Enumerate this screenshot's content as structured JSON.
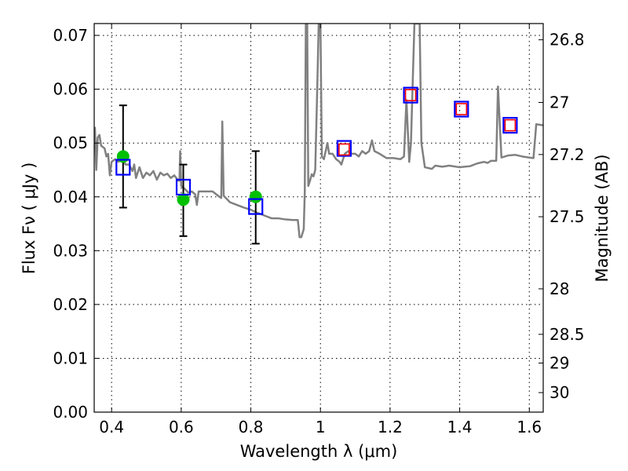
{
  "chart_data": {
    "type": "line",
    "title": "",
    "xlabel": "Wavelength  λ (μm)",
    "ylabel": "Flux  Fν  ( μJy )",
    "ylabel_right": "Magnitude (AB)",
    "xlim": [
      0.35,
      1.64
    ],
    "ylim": [
      0.0,
      0.0722
    ],
    "grid": true,
    "x_ticks": [
      "0.4",
      "0.6",
      "0.8",
      "1",
      "1.2",
      "1.4",
      "1.6"
    ],
    "x_tick_values": [
      0.4,
      0.6,
      0.8,
      1.0,
      1.2,
      1.4,
      1.6
    ],
    "y_ticks": [
      "0.00",
      "0.01",
      "0.02",
      "0.03",
      "0.04",
      "0.05",
      "0.06",
      "0.07"
    ],
    "y_tick_values": [
      0,
      0.01,
      0.02,
      0.03,
      0.04,
      0.05,
      0.06,
      0.07
    ],
    "right_ticks": [
      "26.8",
      "27",
      "27.2",
      "27.5",
      "28",
      "28.5",
      "29",
      "30"
    ],
    "right_tick_values": [
      26.8,
      27,
      27.2,
      27.5,
      28,
      28.5,
      29,
      30
    ],
    "mag_zeropoint": 23.9,
    "colors": {
      "spectrum": "#808080",
      "observed": "#00c000",
      "errorbar": "#000000",
      "model": "#0000ff",
      "model2": "#ff0000"
    },
    "series": [
      {
        "name": "spectrum",
        "type": "line",
        "points": [
          [
            0.352,
            0.053
          ],
          [
            0.356,
            0.045
          ],
          [
            0.36,
            0.051
          ],
          [
            0.365,
            0.0515
          ],
          [
            0.37,
            0.0495
          ],
          [
            0.38,
            0.049
          ],
          [
            0.385,
            0.0475
          ],
          [
            0.39,
            0.048
          ],
          [
            0.395,
            0.044
          ],
          [
            0.4,
            0.0465
          ],
          [
            0.41,
            0.047
          ],
          [
            0.42,
            0.0465
          ],
          [
            0.43,
            0.0475
          ],
          [
            0.44,
            0.046
          ],
          [
            0.45,
            0.046
          ],
          [
            0.46,
            0.0448
          ],
          [
            0.465,
            0.046
          ],
          [
            0.47,
            0.0435
          ],
          [
            0.48,
            0.0455
          ],
          [
            0.49,
            0.0435
          ],
          [
            0.5,
            0.0445
          ],
          [
            0.51,
            0.044
          ],
          [
            0.52,
            0.0448
          ],
          [
            0.53,
            0.0432
          ],
          [
            0.54,
            0.0445
          ],
          [
            0.55,
            0.044
          ],
          [
            0.56,
            0.0443
          ],
          [
            0.57,
            0.0435
          ],
          [
            0.58,
            0.044
          ],
          [
            0.592,
            0.043
          ],
          [
            0.595,
            0.043
          ],
          [
            0.597,
            0.0485
          ],
          [
            0.6,
            0.042
          ],
          [
            0.61,
            0.0415
          ],
          [
            0.62,
            0.0408
          ],
          [
            0.63,
            0.041
          ],
          [
            0.64,
            0.0405
          ],
          [
            0.645,
            0.0385
          ],
          [
            0.65,
            0.041
          ],
          [
            0.67,
            0.041
          ],
          [
            0.69,
            0.041
          ],
          [
            0.71,
            0.04
          ],
          [
            0.715,
            0.0398
          ],
          [
            0.718,
            0.054
          ],
          [
            0.722,
            0.0402
          ],
          [
            0.74,
            0.039
          ],
          [
            0.76,
            0.0385
          ],
          [
            0.78,
            0.038
          ],
          [
            0.8,
            0.0376
          ],
          [
            0.82,
            0.037
          ],
          [
            0.84,
            0.0365
          ],
          [
            0.86,
            0.036
          ],
          [
            0.88,
            0.036
          ],
          [
            0.9,
            0.0358
          ],
          [
            0.92,
            0.0357
          ],
          [
            0.935,
            0.0357
          ],
          [
            0.94,
            0.0325
          ],
          [
            0.945,
            0.0325
          ],
          [
            0.952,
            0.034
          ],
          [
            0.955,
            0.041
          ],
          [
            0.958,
            0.0722
          ],
          [
            0.962,
            0.0722
          ],
          [
            0.965,
            0.042
          ],
          [
            0.97,
            0.043
          ],
          [
            0.975,
            0.0442
          ],
          [
            0.98,
            0.0438
          ],
          [
            0.985,
            0.045
          ],
          [
            0.99,
            0.058
          ],
          [
            0.995,
            0.0722
          ],
          [
            1.0,
            0.0722
          ],
          [
            1.004,
            0.0475
          ],
          [
            1.01,
            0.047
          ],
          [
            1.02,
            0.05
          ],
          [
            1.025,
            0.048
          ],
          [
            1.035,
            0.048
          ],
          [
            1.045,
            0.047
          ],
          [
            1.055,
            0.0465
          ],
          [
            1.06,
            0.046
          ],
          [
            1.07,
            0.048
          ],
          [
            1.08,
            0.0485
          ],
          [
            1.09,
            0.048
          ],
          [
            1.1,
            0.048
          ],
          [
            1.11,
            0.0475
          ],
          [
            1.12,
            0.0485
          ],
          [
            1.13,
            0.048
          ],
          [
            1.14,
            0.0485
          ],
          [
            1.148,
            0.0505
          ],
          [
            1.155,
            0.0485
          ],
          [
            1.17,
            0.048
          ],
          [
            1.19,
            0.0472
          ],
          [
            1.21,
            0.0472
          ],
          [
            1.23,
            0.047
          ],
          [
            1.24,
            0.0475
          ],
          [
            1.247,
            0.058
          ],
          [
            1.255,
            0.0465
          ],
          [
            1.26,
            0.05
          ],
          [
            1.27,
            0.0722
          ],
          [
            1.285,
            0.0722
          ],
          [
            1.29,
            0.05
          ],
          [
            1.3,
            0.0455
          ],
          [
            1.32,
            0.0452
          ],
          [
            1.33,
            0.0458
          ],
          [
            1.35,
            0.0456
          ],
          [
            1.37,
            0.0458
          ],
          [
            1.4,
            0.0455
          ],
          [
            1.43,
            0.0457
          ],
          [
            1.45,
            0.0462
          ],
          [
            1.47,
            0.0465
          ],
          [
            1.48,
            0.0463
          ],
          [
            1.49,
            0.0467
          ],
          [
            1.505,
            0.0467
          ],
          [
            1.51,
            0.0605
          ],
          [
            1.52,
            0.0473
          ],
          [
            1.54,
            0.0477
          ],
          [
            1.56,
            0.0478
          ],
          [
            1.58,
            0.0475
          ],
          [
            1.6,
            0.0473
          ],
          [
            1.612,
            0.0472
          ],
          [
            1.62,
            0.0535
          ],
          [
            1.64,
            0.0533
          ]
        ]
      },
      {
        "name": "observed",
        "type": "scatter",
        "points": [
          [
            0.433,
            0.0475,
            0.038,
            0.057
          ],
          [
            0.606,
            0.0395,
            0.0327,
            0.046
          ],
          [
            0.814,
            0.04,
            0.0313,
            0.0485
          ]
        ]
      },
      {
        "name": "model",
        "type": "scatter",
        "points": [
          [
            0.433,
            0.0455
          ],
          [
            0.606,
            0.0418
          ],
          [
            0.814,
            0.0382
          ],
          [
            1.068,
            0.049
          ],
          [
            1.259,
            0.0589
          ],
          [
            1.405,
            0.0563
          ],
          [
            1.545,
            0.0533
          ]
        ]
      },
      {
        "name": "model2",
        "type": "scatter",
        "points": [
          [
            1.068,
            0.0488
          ],
          [
            1.259,
            0.0589
          ],
          [
            1.405,
            0.0563
          ],
          [
            1.545,
            0.0533
          ]
        ]
      }
    ]
  }
}
